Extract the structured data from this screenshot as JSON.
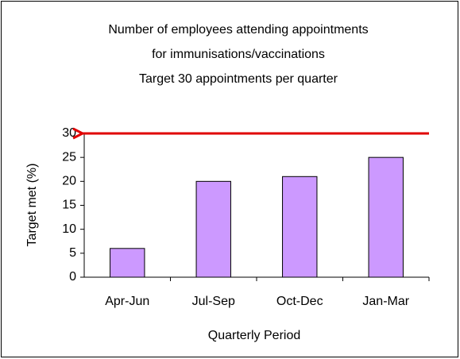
{
  "chart_data": {
    "type": "bar",
    "title": [
      "Number of employees attending appointments",
      "for immunisations/vaccinations",
      "Target 30 appointments per quarter"
    ],
    "x_label": "Quarterly Period",
    "y_label": "Target met (%)",
    "categories": [
      "Apr-Jun",
      "Jul-Sep",
      "Oct-Dec",
      "Jan-Mar"
    ],
    "values": [
      6,
      20,
      21,
      25
    ],
    "color": "#cc99ff",
    "target": 30,
    "target_color": "#e00000",
    "ylim": [
      0,
      30
    ],
    "yticks": [
      0,
      5,
      10,
      15,
      20,
      25,
      30
    ],
    "grid": false
  }
}
